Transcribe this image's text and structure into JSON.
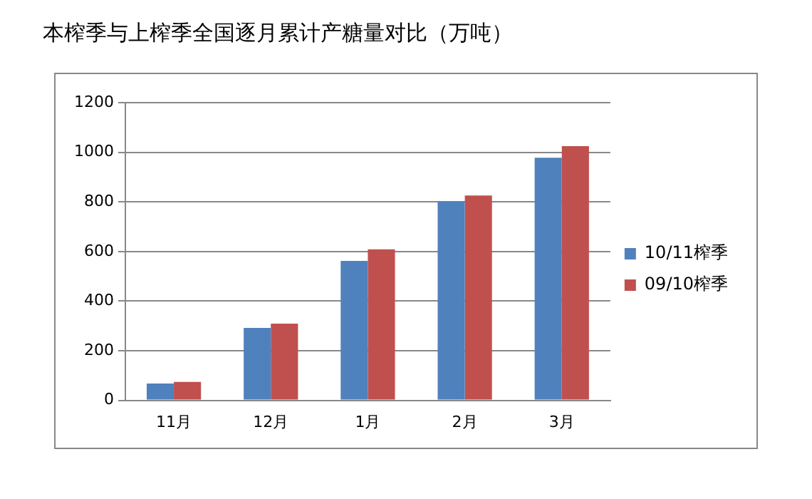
{
  "chart_data": {
    "type": "bar",
    "title": "本榨季与上榨季全国逐月累计产糖量对比（万吨）",
    "categories": [
      "11月",
      "12月",
      "1月",
      "2月",
      "3月"
    ],
    "series": [
      {
        "name": "10/11榨季",
        "color": "#4f81bd",
        "values": [
          68,
          292,
          562,
          802,
          978
        ]
      },
      {
        "name": "09/10榨季",
        "color": "#c0504d",
        "values": [
          74,
          309,
          609,
          826,
          1025
        ]
      }
    ],
    "ylim": [
      0,
      1200
    ],
    "yticks": [
      0,
      200,
      400,
      600,
      800,
      1000,
      1200
    ],
    "grid": "y",
    "legend": "right"
  }
}
